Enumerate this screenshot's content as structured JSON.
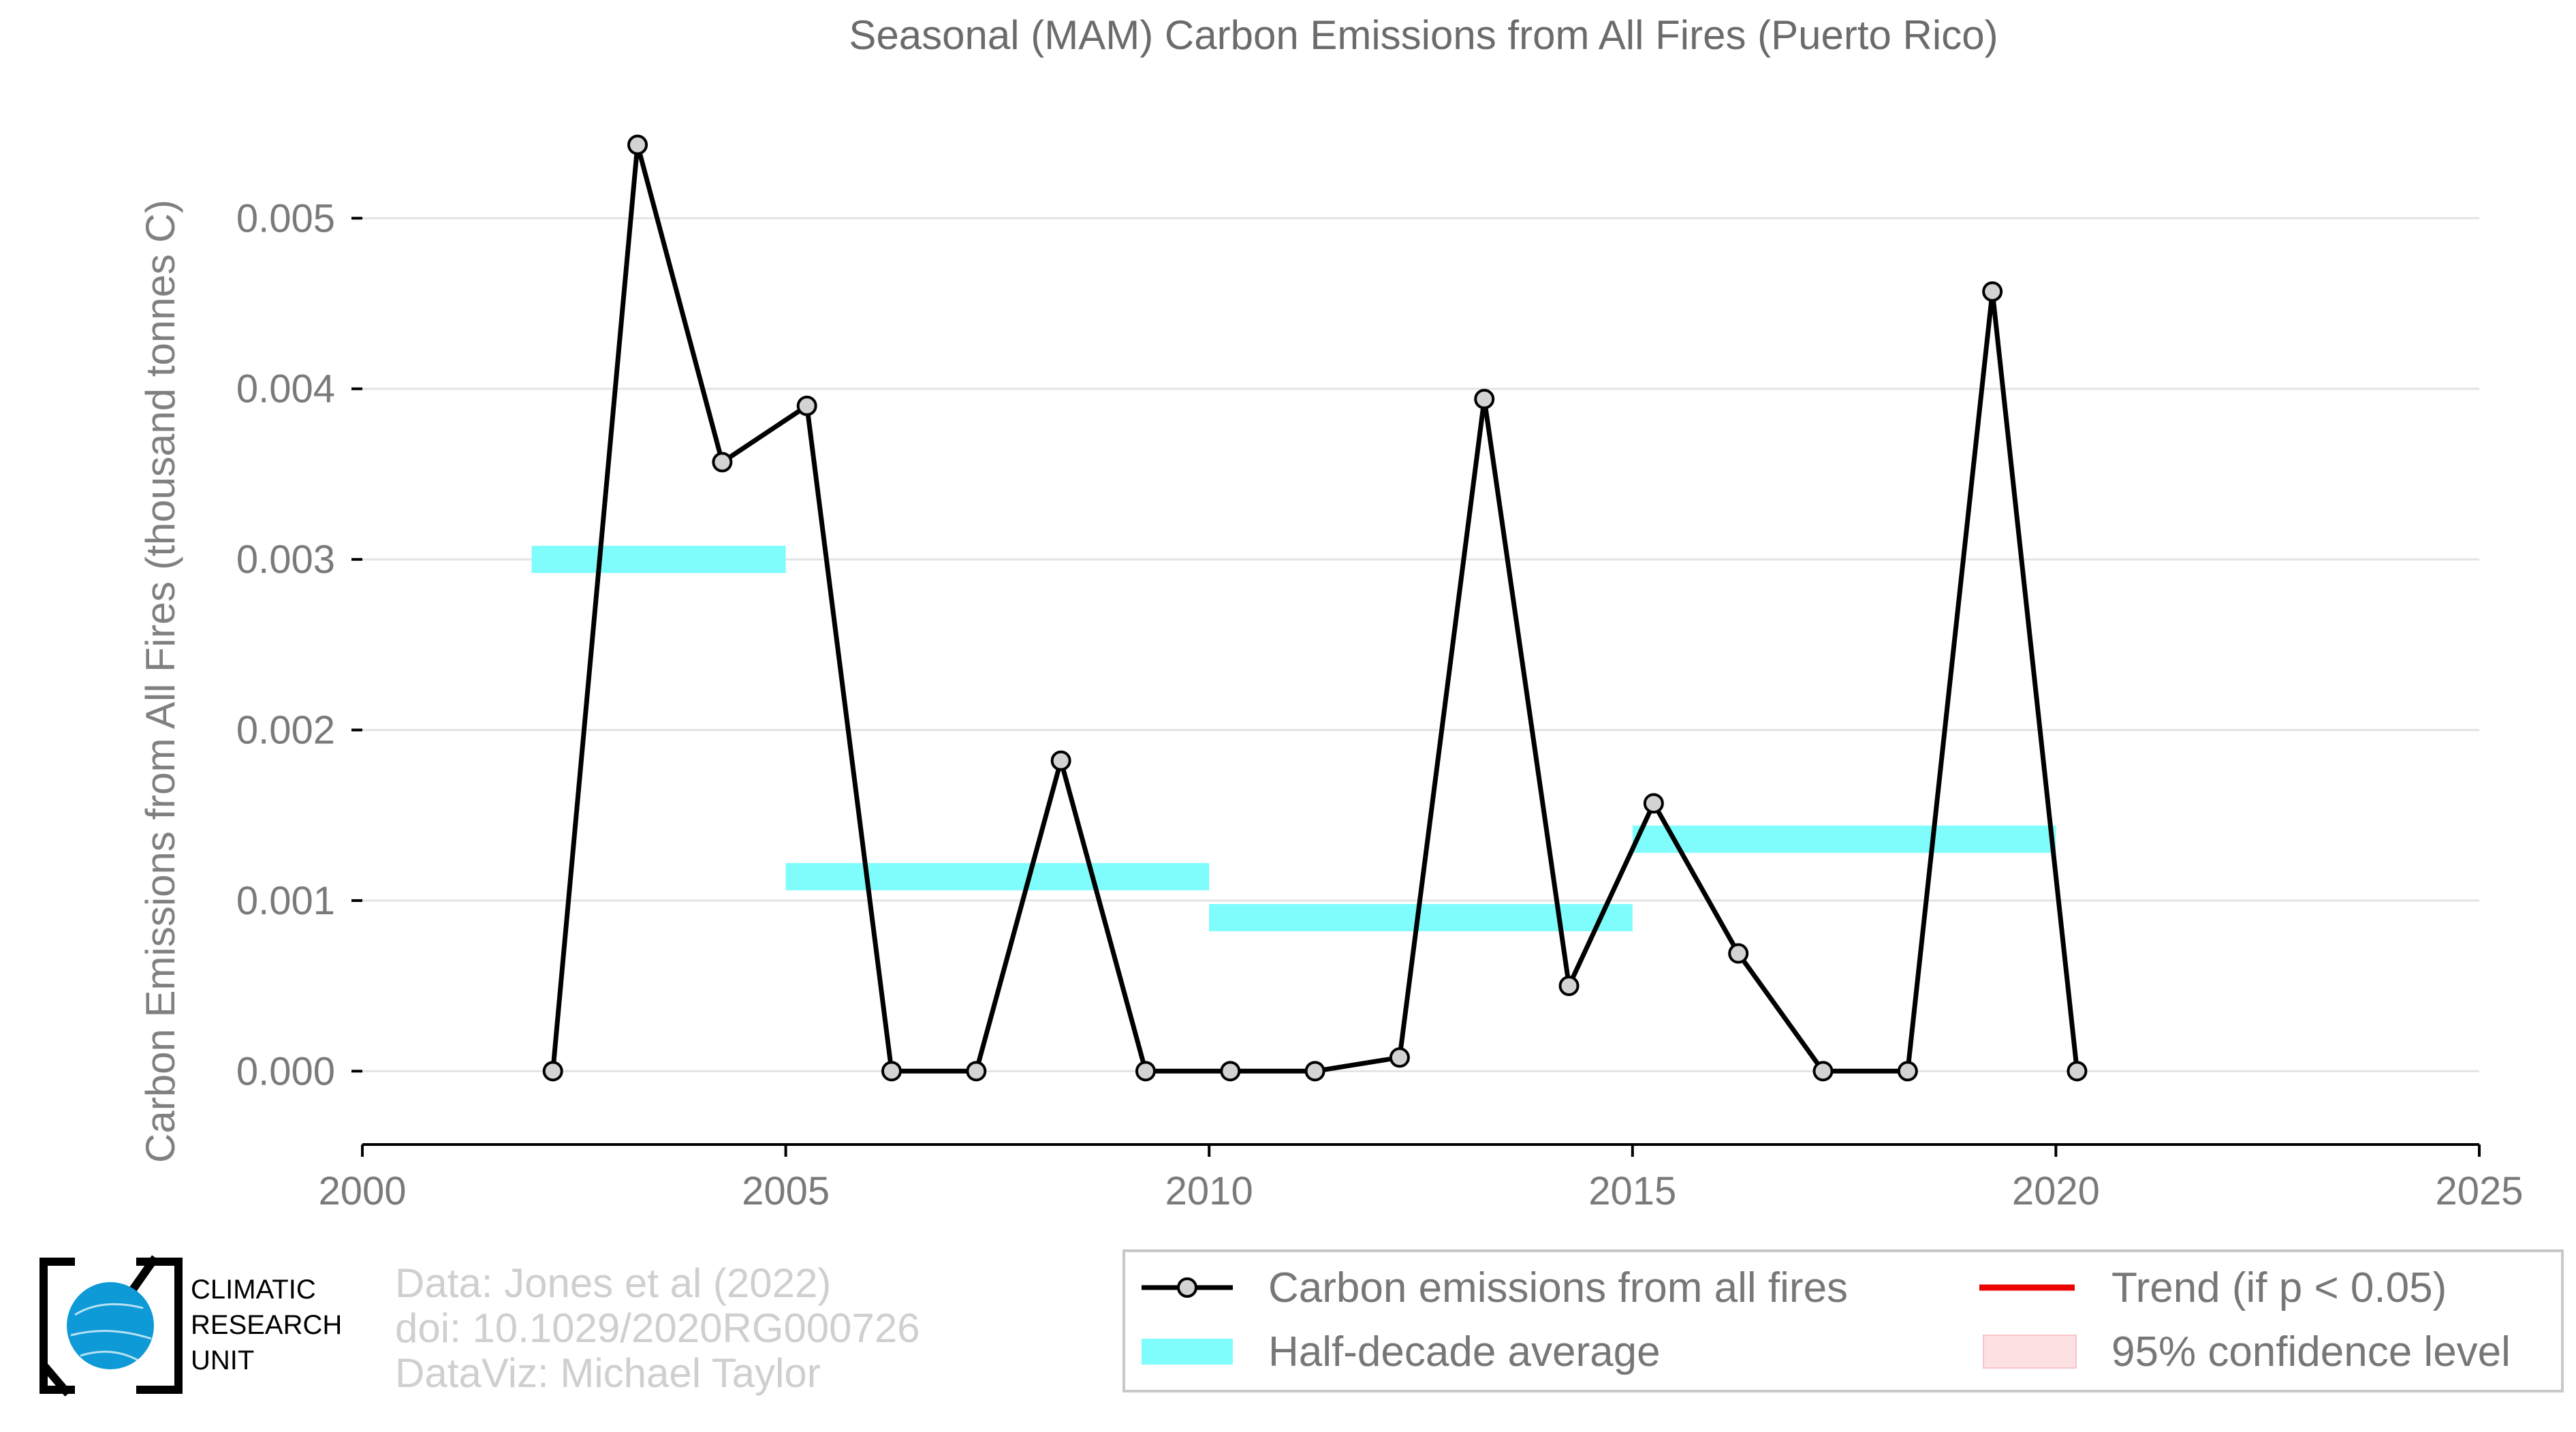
{
  "chart_data": {
    "type": "line",
    "title": "Seasonal (MAM) Carbon Emissions from All Fires (Puerto Rico)",
    "xlabel": "",
    "ylabel": "Carbon Emissions from All Fires (thousand tonnes C)",
    "xlim": [
      2000,
      2025
    ],
    "ylim": [
      -0.00043,
      0.0058
    ],
    "xticks": [
      "2000",
      "2005",
      "2010",
      "2015",
      "2020",
      "2025"
    ],
    "yticks": [
      "0.000",
      "0.001",
      "0.002",
      "0.003",
      "0.004",
      "0.005"
    ],
    "grid": true,
    "series": [
      {
        "name": "Carbon emissions from all fires",
        "color": "#000000",
        "x": [
          2002,
          2003,
          2004,
          2005,
          2006,
          2007,
          2008,
          2009,
          2010,
          2011,
          2012,
          2013,
          2014,
          2015,
          2016,
          2017,
          2018,
          2019,
          2020
        ],
        "values": [
          0.0,
          0.00543,
          0.00357,
          0.0039,
          0.0,
          0.0,
          0.00182,
          0.0,
          0.0,
          0.0,
          8e-05,
          0.00394,
          0.0005,
          0.00157,
          0.00069,
          0.0,
          0.0,
          0.00457,
          0.0
        ]
      }
    ],
    "half_decade_average": {
      "name": "Half-decade average",
      "color": "#7ffcfc",
      "segments": [
        {
          "x_start": 2002,
          "x_end": 2005,
          "value": 0.003
        },
        {
          "x_start": 2005,
          "x_end": 2010,
          "value": 0.00114
        },
        {
          "x_start": 2010,
          "x_end": 2015,
          "value": 0.0009
        },
        {
          "x_start": 2015,
          "x_end": 2020,
          "value": 0.00136
        }
      ]
    },
    "legend": {
      "placement": "bottom-right",
      "entries": [
        {
          "label": "Carbon emissions from all fires",
          "color": "#000000"
        },
        {
          "label": "Trend (if p < 0.05)",
          "color": "#ee0000"
        },
        {
          "label": "Half-decade average",
          "color": "#7ffcfc"
        },
        {
          "label": "95% confidence level",
          "color": "#fde0e2"
        }
      ]
    }
  },
  "credits": {
    "line1": "Data: Jones et al (2022)",
    "line2": "doi: 10.1029/2020RG000726",
    "line3": "DataViz: Michael Taylor"
  },
  "logo": {
    "line1": "CLIMATIC",
    "line2": "RESEARCH",
    "line3": "UNIT"
  }
}
